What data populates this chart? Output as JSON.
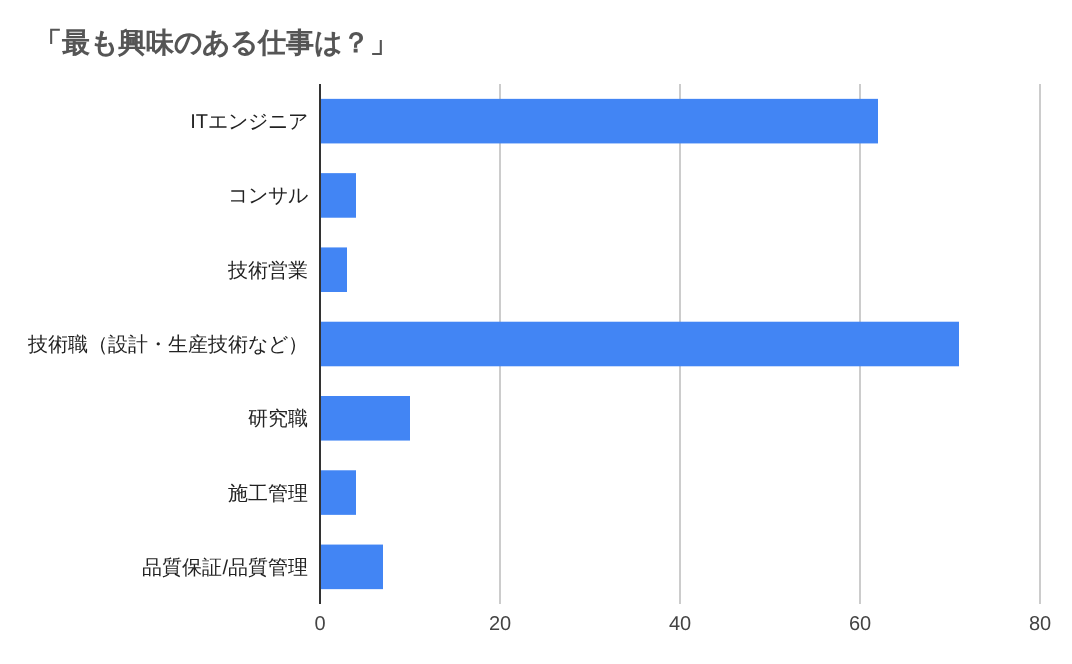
{
  "chart_data": {
    "type": "bar",
    "orientation": "horizontal",
    "title": "「最も興味のある仕事は？」",
    "categories": [
      "ITエンジニア",
      "コンサル",
      "技術営業",
      "技術職（設計・生産技術など）",
      "研究職",
      "施工管理",
      "品質保証/品質管理"
    ],
    "values": [
      62,
      4,
      3,
      71,
      10,
      4,
      7
    ],
    "color": "#4285f4",
    "xlim": [
      0,
      80
    ],
    "xticks": [
      0,
      20,
      40,
      60,
      80
    ],
    "grid": "x"
  }
}
